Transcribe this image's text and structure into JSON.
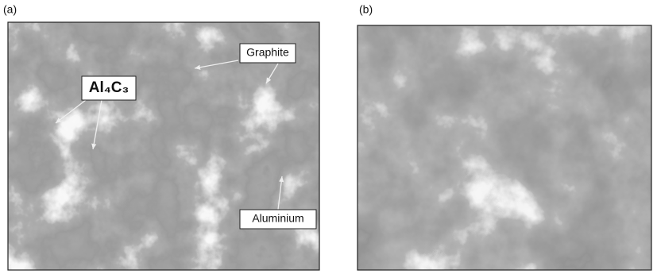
{
  "panels": [
    {
      "label": "(a)",
      "annotations": [
        "Graphite",
        "Al₄C₃",
        "Aluminium"
      ]
    },
    {
      "label": "(b)"
    }
  ]
}
